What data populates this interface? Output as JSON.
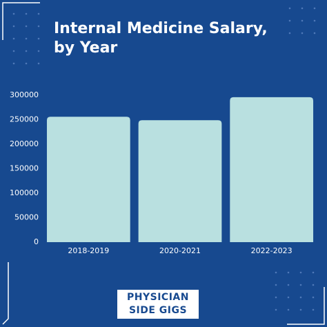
{
  "chart_data": {
    "type": "bar",
    "title": "Internal Medicine Salary, by Year",
    "categories": [
      "2018-2019",
      "2020-2021",
      "2022-2023"
    ],
    "values": [
      256000,
      249000,
      296000
    ],
    "color": "#b9e0e0",
    "ylim": [
      0,
      300000
    ],
    "yticks": [
      0,
      50000,
      100000,
      150000,
      200000,
      250000,
      300000
    ],
    "grid": false
  },
  "logo": {
    "lines": [
      "PHYSICIAN",
      "SIDE GIGS"
    ]
  }
}
